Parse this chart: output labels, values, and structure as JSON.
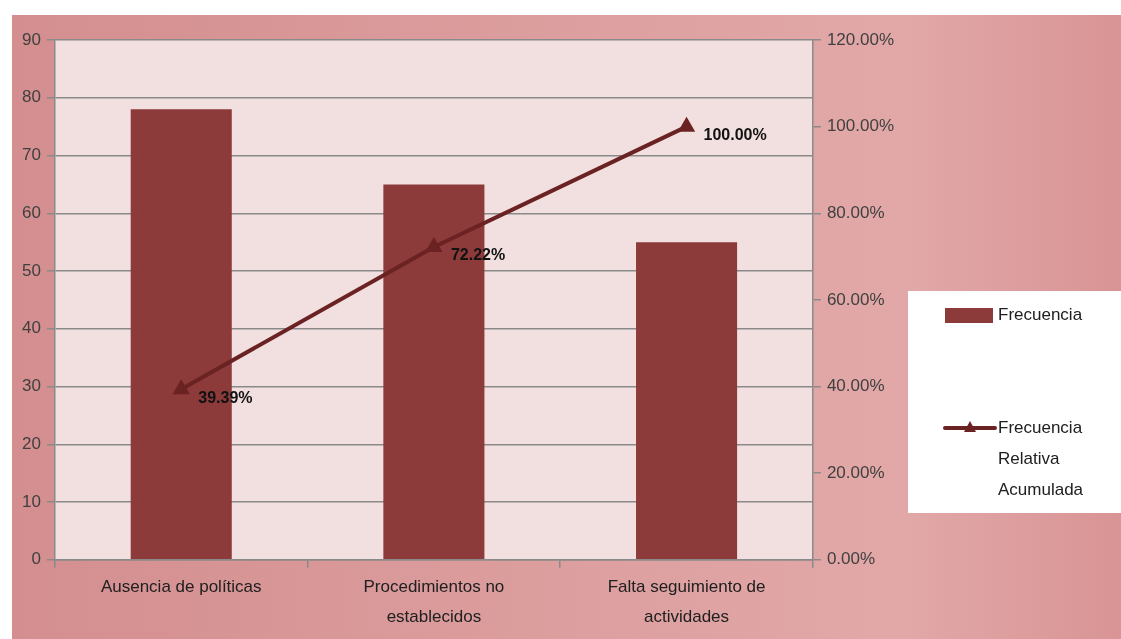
{
  "chart_data": {
    "type": "bar",
    "categories": [
      "Ausencia de políticas",
      "Procedimientos no establecidos",
      "Falta seguimiento de actividades"
    ],
    "series": [
      {
        "name": "Frecuencia",
        "color": "#8c3a3a",
        "values": [
          78,
          65,
          55
        ]
      },
      {
        "name": "Frecuencia Relativa Acumulada",
        "type": "line",
        "axis": "y2",
        "color": "#6b2222",
        "values": [
          39.39,
          72.22,
          100
        ],
        "value_labels": [
          "39.39%",
          "72.22%",
          "100.00%"
        ]
      }
    ],
    "ylim": [
      0,
      90
    ],
    "yticks": [
      0,
      10,
      20,
      30,
      40,
      50,
      60,
      70,
      80,
      90
    ],
    "y2lim": [
      0,
      120
    ],
    "y2ticks": [
      {
        "value": 0,
        "label": "0.00%"
      },
      {
        "value": 20,
        "label": "20.00%"
      },
      {
        "value": 40,
        "label": "40.00%"
      },
      {
        "value": 60,
        "label": "60.00%"
      },
      {
        "value": 80,
        "label": "80.00%"
      },
      {
        "value": 100,
        "label": "100.00%"
      },
      {
        "value": 120,
        "label": "120.00%"
      }
    ],
    "grid": "y",
    "legend": "right",
    "marker": "triangle"
  }
}
